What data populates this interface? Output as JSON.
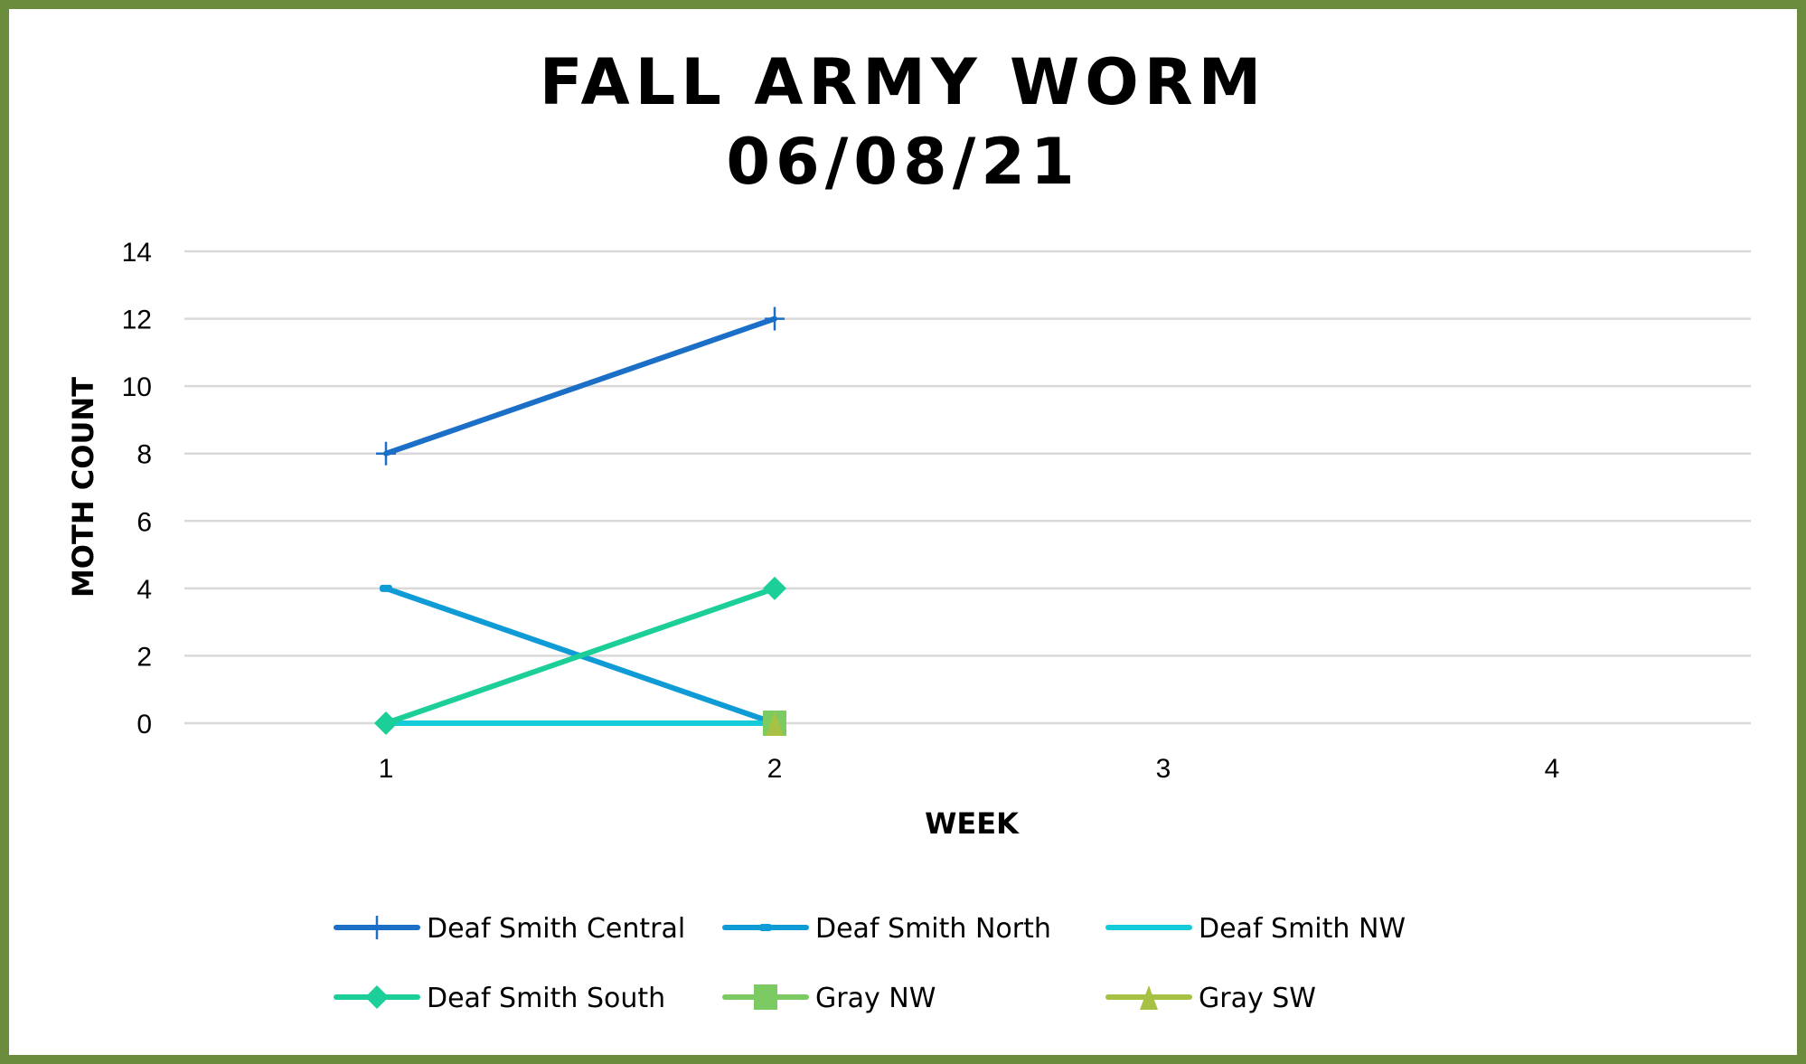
{
  "chart_data": {
    "type": "line",
    "title": [
      "FALL ARMY WORM",
      "06/08/21"
    ],
    "xlabel": "WEEK",
    "ylabel": "MOTH COUNT",
    "x": [
      1,
      2,
      3,
      4
    ],
    "xticks": [
      "1",
      "2",
      "3",
      "4"
    ],
    "ylim": [
      0,
      14
    ],
    "yticks": [
      "0",
      "2",
      "4",
      "6",
      "8",
      "10",
      "12",
      "14"
    ],
    "grid": true,
    "legend_position": "bottom",
    "series": [
      {
        "name": "Deaf Smith Central",
        "values": [
          8,
          12,
          null,
          null
        ],
        "color": "#1b6fc6",
        "marker": "plus"
      },
      {
        "name": "Deaf Smith North",
        "values": [
          4,
          0,
          null,
          null
        ],
        "color": "#0f9bd6",
        "marker": "dash"
      },
      {
        "name": "Deaf Smith NW",
        "values": [
          0,
          0,
          null,
          null
        ],
        "color": "#16cbd9",
        "marker": "none"
      },
      {
        "name": "Deaf Smith South",
        "values": [
          0,
          4,
          null,
          null
        ],
        "color": "#1ccf98",
        "marker": "diamond"
      },
      {
        "name": "Gray NW",
        "values": [
          null,
          0,
          null,
          null
        ],
        "color": "#7bcb62",
        "marker": "square"
      },
      {
        "name": "Gray SW",
        "values": [
          null,
          0,
          null,
          null
        ],
        "color": "#a6c143",
        "marker": "triangle"
      }
    ]
  }
}
